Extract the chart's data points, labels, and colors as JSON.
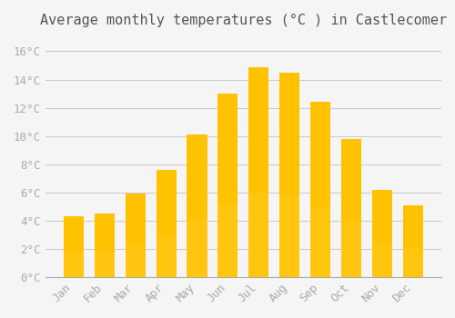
{
  "title": "Average monthly temperatures (°C ) in Castlecomer",
  "months": [
    "Jan",
    "Feb",
    "Mar",
    "Apr",
    "May",
    "Jun",
    "Jul",
    "Aug",
    "Sep",
    "Oct",
    "Nov",
    "Dec"
  ],
  "values": [
    4.3,
    4.5,
    5.9,
    7.6,
    10.1,
    13.0,
    14.9,
    14.5,
    12.4,
    9.8,
    6.2,
    5.1
  ],
  "bar_color_top": "#FFC200",
  "bar_color_bottom": "#FFD966",
  "background_color": "#F5F5F5",
  "grid_color": "#CCCCCC",
  "ylim": [
    0,
    17
  ],
  "yticks": [
    0,
    2,
    4,
    6,
    8,
    10,
    12,
    14,
    16
  ],
  "ytick_labels": [
    "0°C",
    "2°C",
    "4°C",
    "6°C",
    "8°C",
    "10°C",
    "12°C",
    "14°C",
    "16°C"
  ],
  "title_fontsize": 11,
  "tick_fontsize": 9,
  "tick_color": "#AAAAAA"
}
